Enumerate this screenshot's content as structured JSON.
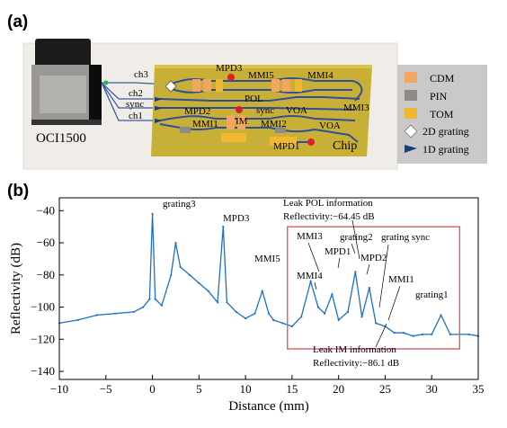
{
  "panel_a": {
    "label": "(a)",
    "device_name": "OCI1500",
    "channels": [
      "ch3",
      "ch2",
      "sync",
      "ch1"
    ],
    "chip_labels": [
      "MPD3",
      "MMI5",
      "MMI4",
      "POL",
      "MPD2",
      "sync",
      "VOA",
      "MMI3",
      "MMI1",
      "IM",
      "MMI2",
      "VOA",
      "MPD1",
      "Chip"
    ],
    "legend": [
      {
        "label": "CDM",
        "color": "#f0a860",
        "shape": "rect"
      },
      {
        "label": "PIN",
        "color": "#8e8a84",
        "shape": "rect"
      },
      {
        "label": "TOM",
        "color": "#f0b830",
        "shape": "rect"
      },
      {
        "label": "2D grating",
        "color": "#ffffff",
        "shape": "diamond"
      },
      {
        "label": "1D grating",
        "color": "#1a3c7a",
        "shape": "arrow"
      }
    ],
    "colors": {
      "chip": "#c8b036",
      "waveguide": "#3a5aa8",
      "pin_dot": "#d8222a",
      "plate": "#efece6"
    }
  },
  "panel_b": {
    "label": "(b)",
    "annotations": [
      "grating3",
      "MPD3",
      "MMI5",
      "MMI3",
      "grating2",
      "grating sync",
      "MPD1",
      "MPD2",
      "MMI4",
      "MMI1",
      "grating1"
    ],
    "leak_pol": {
      "title": "Leak POL information",
      "reflectivity": "Reflectivity:−64.45 dB"
    },
    "leak_im": {
      "title": "Leak IM information",
      "reflectivity": "Reflectivity:−86.1 dB"
    }
  },
  "chart_data": {
    "type": "line",
    "title": "",
    "xlabel": "Distance (mm)",
    "ylabel": "Reflectivity (dB)",
    "xlim": [
      -10,
      35
    ],
    "ylim": [
      -145,
      -32
    ],
    "xticks": [
      -10,
      -5,
      0,
      5,
      10,
      15,
      20,
      25,
      30,
      35
    ],
    "yticks": [
      -40,
      -60,
      -80,
      -100,
      -120,
      -140
    ],
    "grid": false,
    "line_color": "#1f6fc8",
    "highlight_box": {
      "x": [
        14.5,
        33.0
      ],
      "y": [
        -126,
        -50
      ],
      "color": "#e05a6a"
    },
    "series": [
      {
        "x": [
          -10,
          -8,
          -6,
          -4,
          -2,
          -1,
          -0.3,
          0,
          0.3,
          1,
          2,
          2.5,
          3,
          4,
          5,
          6,
          7,
          7.6,
          8,
          9,
          10,
          11,
          11.8,
          12.5,
          13,
          14,
          15,
          16,
          17,
          17.8,
          18.5,
          19.3,
          20,
          21,
          21.8,
          22.5,
          23.3,
          24,
          25,
          26,
          27,
          28,
          29,
          30,
          31,
          32,
          33,
          34,
          35
        ],
        "values": [
          -110,
          -108,
          -105,
          -104,
          -103,
          -100,
          -95,
          -42,
          -95,
          -99,
          -80,
          -60,
          -75,
          -80,
          -85,
          -90,
          -97,
          -50,
          -97,
          -103,
          -107,
          -104,
          -90,
          -104,
          -108,
          -110,
          -112,
          -106,
          -84,
          -100,
          -104,
          -92,
          -108,
          -103,
          -78,
          -106,
          -88,
          -110,
          -112,
          -116,
          -116,
          -118,
          -117,
          -117,
          -105,
          -117,
          -117,
          -117,
          -118
        ]
      }
    ]
  }
}
